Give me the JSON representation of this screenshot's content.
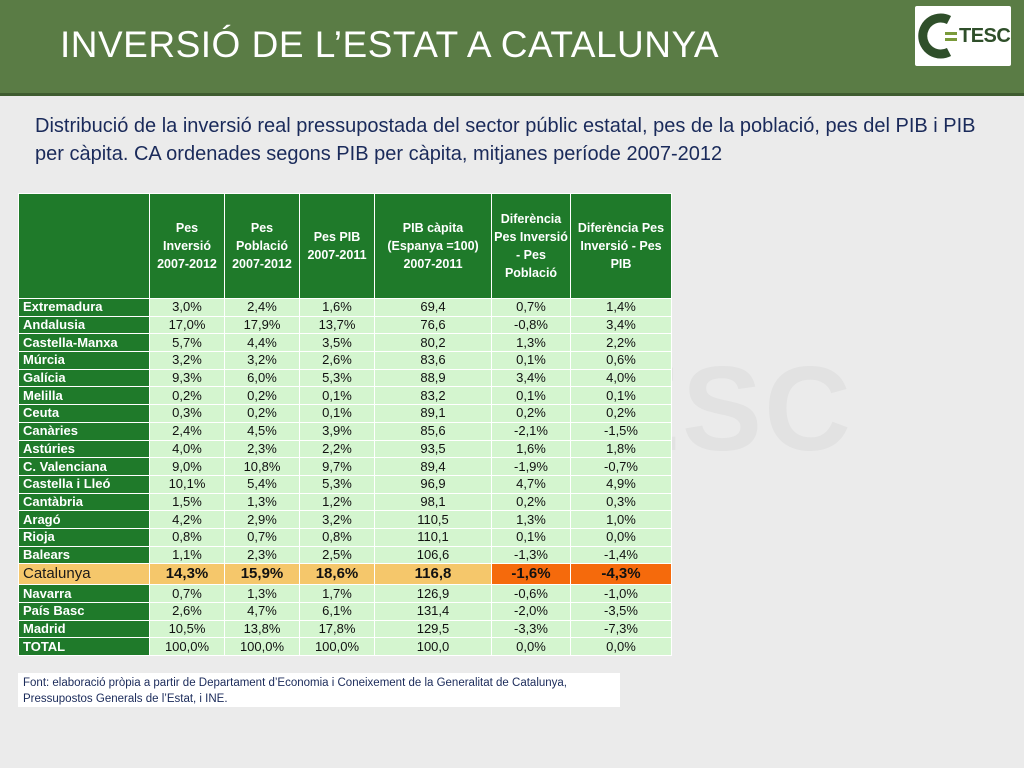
{
  "header": {
    "title": "INVERSIÓ DE L’ESTAT A CATALUNYA",
    "logo_text": "TESC"
  },
  "subtitle": "Distribució de la inversió real pressupostada del sector públic estatal, pes de la població, pes del PIB i PIB per càpita. CA ordenades segons PIB per càpita, mitjanes període 2007-2012",
  "watermark": "ESC",
  "table": {
    "columns": [
      "",
      "Pes Inversió 2007-2012",
      "Pes Població 2007-2012",
      "Pes PIB 2007-2011",
      "PIB càpita (Espanya =100) 2007-2011",
      "Diferència Pes Inversió - Pes Població",
      "Diferència Pes Inversió - Pes PIB"
    ],
    "rows": [
      {
        "name": "Extremadura",
        "values": [
          "3,0%",
          "2,4%",
          "1,6%",
          "69,4",
          "0,7%",
          "1,4%"
        ]
      },
      {
        "name": "Andalusia",
        "values": [
          "17,0%",
          "17,9%",
          "13,7%",
          "76,6",
          "-0,8%",
          "3,4%"
        ]
      },
      {
        "name": "Castella-Manxa",
        "values": [
          "5,7%",
          "4,4%",
          "3,5%",
          "80,2",
          "1,3%",
          "2,2%"
        ]
      },
      {
        "name": "Múrcia",
        "values": [
          "3,2%",
          "3,2%",
          "2,6%",
          "83,6",
          "0,1%",
          "0,6%"
        ]
      },
      {
        "name": "Galícia",
        "values": [
          "9,3%",
          "6,0%",
          "5,3%",
          "88,9",
          "3,4%",
          "4,0%"
        ]
      },
      {
        "name": "Melilla",
        "values": [
          "0,2%",
          "0,2%",
          "0,1%",
          "83,2",
          "0,1%",
          "0,1%"
        ]
      },
      {
        "name": "Ceuta",
        "values": [
          "0,3%",
          "0,2%",
          "0,1%",
          "89,1",
          "0,2%",
          "0,2%"
        ]
      },
      {
        "name": "Canàries",
        "values": [
          "2,4%",
          "4,5%",
          "3,9%",
          "85,6",
          "-2,1%",
          "-1,5%"
        ]
      },
      {
        "name": "Astúries",
        "values": [
          "4,0%",
          "2,3%",
          "2,2%",
          "93,5",
          "1,6%",
          "1,8%"
        ]
      },
      {
        "name": "C. Valenciana",
        "values": [
          "9,0%",
          "10,8%",
          "9,7%",
          "89,4",
          "-1,9%",
          "-0,7%"
        ]
      },
      {
        "name": "Castella i Lleó",
        "values": [
          "10,1%",
          "5,4%",
          "5,3%",
          "96,9",
          "4,7%",
          "4,9%"
        ]
      },
      {
        "name": "Cantàbria",
        "values": [
          "1,5%",
          "1,3%",
          "1,2%",
          "98,1",
          "0,2%",
          "0,3%"
        ]
      },
      {
        "name": "Aragó",
        "values": [
          "4,2%",
          "2,9%",
          "3,2%",
          "110,5",
          "1,3%",
          "1,0%"
        ]
      },
      {
        "name": "Rioja",
        "values": [
          "0,8%",
          "0,7%",
          "0,8%",
          "110,1",
          "0,1%",
          "0,0%"
        ]
      },
      {
        "name": "Balears",
        "values": [
          "1,1%",
          "2,3%",
          "2,5%",
          "106,6",
          "-1,3%",
          "-1,4%"
        ]
      },
      {
        "name": "Catalunya",
        "values": [
          "14,3%",
          "15,9%",
          "18,6%",
          "116,8",
          "-1,6%",
          "-4,3%"
        ],
        "highlight": true
      },
      {
        "name": "Navarra",
        "values": [
          "0,7%",
          "1,3%",
          "1,7%",
          "126,9",
          "-0,6%",
          "-1,0%"
        ]
      },
      {
        "name": "País Basc",
        "values": [
          "2,6%",
          "4,7%",
          "6,1%",
          "131,4",
          "-2,0%",
          "-3,5%"
        ]
      },
      {
        "name": "Madrid",
        "values": [
          "10,5%",
          "13,8%",
          "17,8%",
          "129,5",
          "-3,3%",
          "-7,3%"
        ]
      },
      {
        "name": "TOTAL",
        "values": [
          "100,0%",
          "100,0%",
          "100,0%",
          "100,0",
          "0,0%",
          "0,0%"
        ]
      }
    ]
  },
  "note": "Font: elaboració pròpia a partir de Departament d’Economia i Coneixement de la Generalitat de Catalunya, Pressupostos Generals de l’Estat, i INE.",
  "colors": {
    "header": "#5a7c45",
    "table_header": "#1f7a2a",
    "cell": "#d4f5cf",
    "highlight": "#f5c76b",
    "highlight_negative": "#f56a0c"
  }
}
